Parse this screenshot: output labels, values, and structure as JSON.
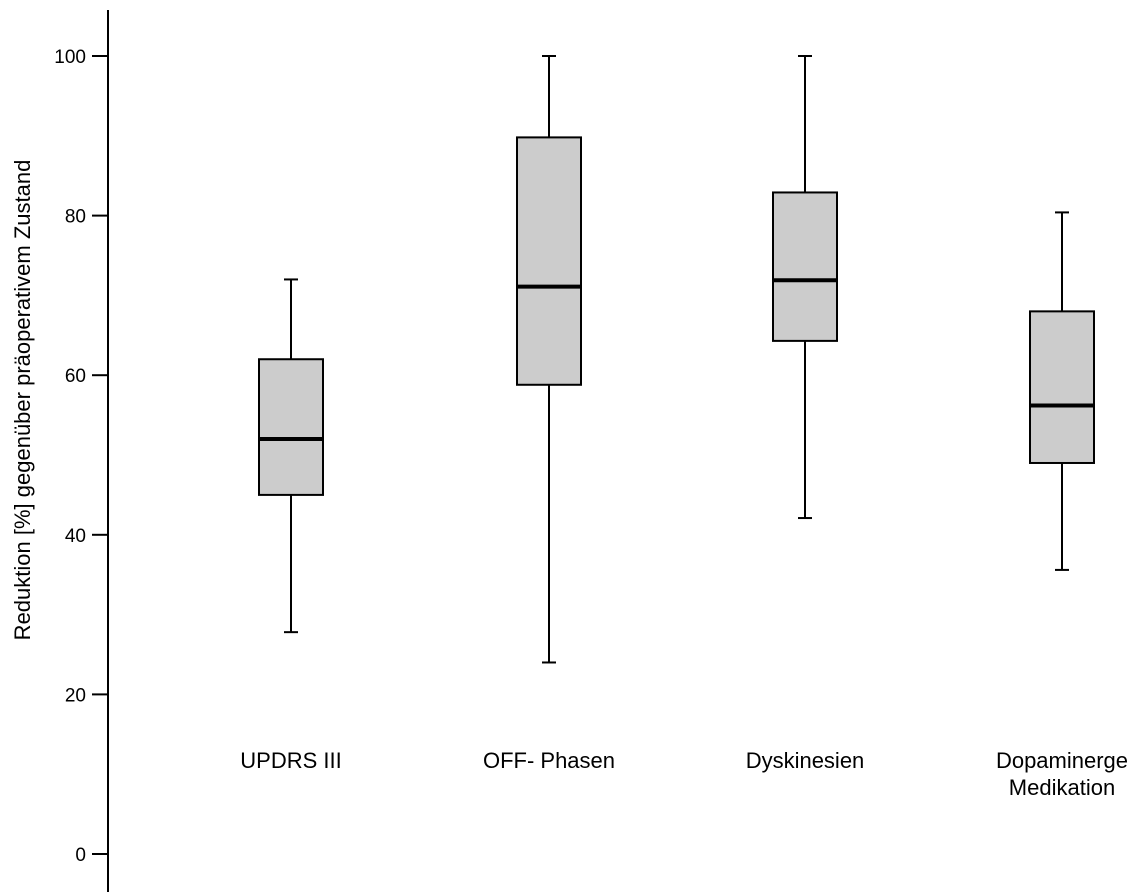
{
  "chart_data": {
    "type": "box",
    "title": "",
    "xlabel": "",
    "ylabel": "Reduktion [%] gegenüber präoperativem Zustand",
    "ylim": [
      -4,
      106
    ],
    "yticks": [
      0,
      20,
      40,
      60,
      80,
      100
    ],
    "grid": false,
    "categories": [
      [
        "UPDRS III"
      ],
      [
        "OFF- Phasen"
      ],
      [
        "Dyskinesien"
      ],
      [
        "Dopaminerge",
        "Medikation"
      ]
    ],
    "boxes": [
      {
        "min": 27.8,
        "q1": 45.0,
        "median": 52.0,
        "q3": 62.0,
        "max": 72.0
      },
      {
        "min": 24.0,
        "q1": 58.8,
        "median": 71.1,
        "q3": 89.8,
        "max": 100.0
      },
      {
        "min": 42.1,
        "q1": 64.3,
        "median": 71.9,
        "q3": 82.9,
        "max": 100.0
      },
      {
        "min": 35.6,
        "q1": 49.0,
        "median": 56.2,
        "q3": 68.0,
        "max": 80.4
      }
    ]
  }
}
